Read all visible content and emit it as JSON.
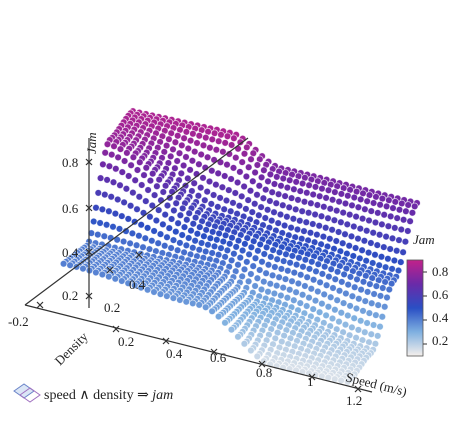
{
  "chart_data": {
    "type": "scatter3d",
    "title": "",
    "x_axis": {
      "label": "Speed (m/s)",
      "ticks": [
        0.2,
        0.4,
        0.6,
        0.8,
        1,
        1.2
      ],
      "range": [
        0,
        1.3
      ]
    },
    "y_axis": {
      "label": "Density",
      "ticks": [
        -0.2,
        0.2,
        0.4
      ],
      "range": [
        -0.2,
        0.55
      ]
    },
    "z_axis": {
      "label": "Jam",
      "ticks": [
        0.2,
        0.4,
        0.6,
        0.8
      ],
      "range": [
        0,
        0.9
      ]
    },
    "colorbar": {
      "title": "Jam",
      "ticks": [
        0.2,
        0.4,
        0.6,
        0.8
      ],
      "range": [
        0.1,
        0.9
      ],
      "colors": [
        "#f5f0ec",
        "#7fb0e0",
        "#2a4fc4",
        "#6a2aa8",
        "#c2218a"
      ]
    },
    "surface_points": [
      {
        "speed": 0.05,
        "density": 0.4,
        "jam": 0.85
      },
      {
        "speed": 0.45,
        "density": 0.4,
        "jam": 0.85
      },
      {
        "speed": 0.65,
        "density": 0.4,
        "jam": 0.74
      },
      {
        "speed": 1.2,
        "density": 0.4,
        "jam": 0.72
      },
      {
        "speed": 0.05,
        "density": 0.25,
        "jam": 0.8
      },
      {
        "speed": 0.5,
        "density": 0.25,
        "jam": 0.55
      },
      {
        "speed": 0.8,
        "density": 0.25,
        "jam": 0.5
      },
      {
        "speed": 1.2,
        "density": 0.25,
        "jam": 0.45
      },
      {
        "speed": 0.05,
        "density": 0.1,
        "jam": 0.4
      },
      {
        "speed": 0.55,
        "density": 0.1,
        "jam": 0.4
      },
      {
        "speed": 0.75,
        "density": 0.1,
        "jam": 0.3
      },
      {
        "speed": 1.2,
        "density": 0.1,
        "jam": 0.2
      },
      {
        "speed": 0.05,
        "density": -0.05,
        "jam": 0.4
      },
      {
        "speed": 0.6,
        "density": -0.05,
        "jam": 0.35
      },
      {
        "speed": 0.9,
        "density": -0.05,
        "jam": 0.15
      },
      {
        "speed": 1.2,
        "density": -0.05,
        "jam": 0.15
      }
    ],
    "legend": [
      {
        "label": "speed ∧ density ⇒ jam",
        "label_parts": [
          "speed ∧ density ⇒ ",
          "jam"
        ]
      }
    ]
  }
}
